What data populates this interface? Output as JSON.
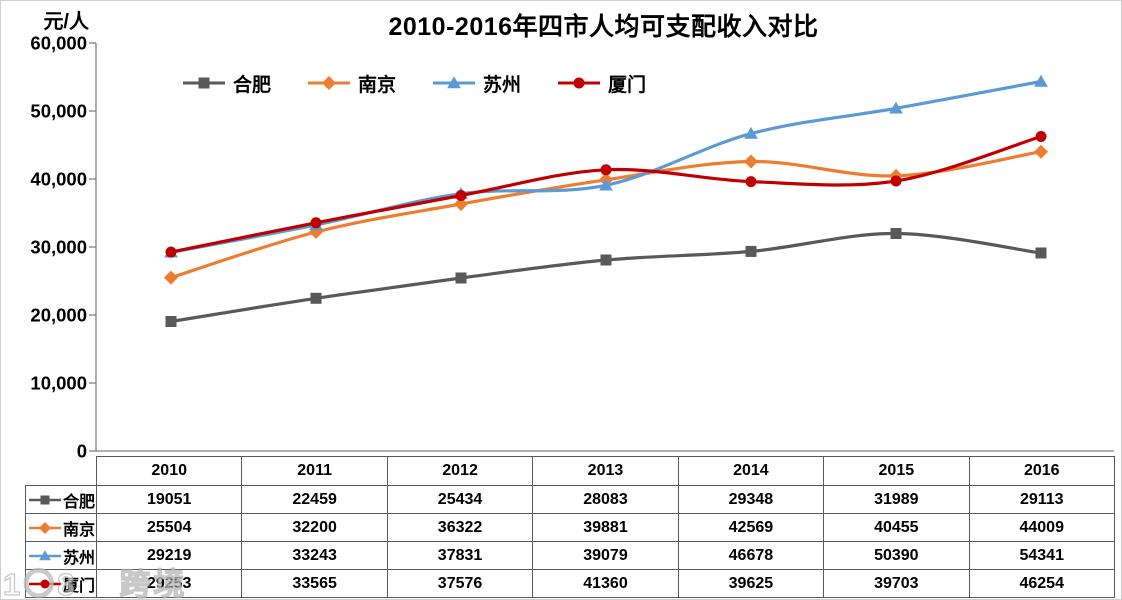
{
  "chart_data": {
    "type": "line",
    "title": "2010-2016年四市人均可支配收入对比",
    "ylabel": "元/人",
    "xlabel": "",
    "categories": [
      "2010",
      "2011",
      "2012",
      "2013",
      "2014",
      "2015",
      "2016"
    ],
    "series": [
      {
        "name": "合肥",
        "color": "#595959",
        "marker": "square",
        "values": [
          19051,
          22459,
          25434,
          28083,
          29348,
          31989,
          29113
        ]
      },
      {
        "name": "南京",
        "color": "#ED7D31",
        "marker": "diamond",
        "values": [
          25504,
          32200,
          36322,
          39881,
          42569,
          40455,
          44009
        ]
      },
      {
        "name": "苏州",
        "color": "#5B9BD5",
        "marker": "triangle",
        "values": [
          29219,
          33243,
          37831,
          39079,
          46678,
          50390,
          54341
        ]
      },
      {
        "name": "厦门",
        "color": "#C00000",
        "marker": "circle",
        "values": [
          29253,
          33565,
          37576,
          41360,
          39625,
          39703,
          46254
        ]
      }
    ],
    "ylim": [
      0,
      60000
    ],
    "ytick_step": 10000,
    "ytick_labels": [
      "0",
      "10,000",
      "20,000",
      "30,000",
      "40,000",
      "50,000",
      "60,000"
    ],
    "legend_position": "top",
    "grid": false,
    "smoothed_lines": true,
    "data_table_attached": true,
    "axis_color": "#808080"
  },
  "watermark": {
    "logo": "1〇8",
    "text": "跨境"
  }
}
